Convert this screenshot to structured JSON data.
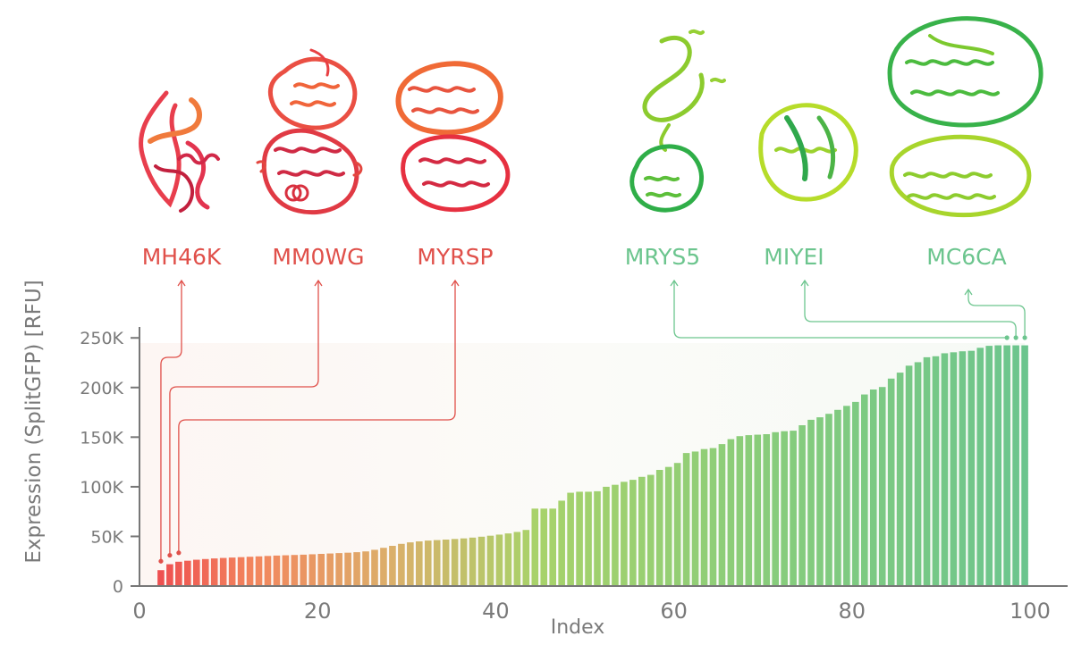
{
  "colors": {
    "red": "#e0504a",
    "green": "#6cc58e",
    "axis": "#777777"
  },
  "chart_data": {
    "type": "bar",
    "xlabel": "Index",
    "ylabel": "Expression (SplitGFP) [RFU]",
    "xlim": [
      0,
      100
    ],
    "ylim": [
      0,
      250000
    ],
    "xticks": [
      0,
      20,
      40,
      60,
      80,
      100
    ],
    "xtick_labels": [
      "0",
      "20",
      "40",
      "60",
      "80",
      "100"
    ],
    "yticks": [
      0,
      50000,
      100000,
      150000,
      200000,
      250000
    ],
    "ytick_labels": [
      "0",
      "50K",
      "100K",
      "150K",
      "200K",
      "250K"
    ],
    "x": [
      1,
      2,
      3,
      4,
      5,
      6,
      7,
      8,
      9,
      10,
      11,
      12,
      13,
      14,
      15,
      16,
      17,
      18,
      19,
      20,
      21,
      22,
      23,
      24,
      25,
      26,
      27,
      28,
      29,
      30,
      31,
      32,
      33,
      34,
      35,
      36,
      37,
      38,
      39,
      40,
      41,
      42,
      43,
      44,
      45,
      46,
      47,
      48,
      49,
      50,
      51,
      52,
      53,
      54,
      55,
      56,
      57,
      58,
      59,
      60,
      61,
      62,
      63,
      64,
      65,
      66,
      67,
      68,
      69,
      70,
      71,
      72,
      73,
      74,
      75,
      76,
      77,
      78,
      79,
      80,
      81,
      82,
      83,
      84,
      85,
      86,
      87,
      88,
      89,
      90,
      91,
      92,
      93,
      94,
      95,
      96,
      97,
      98
    ],
    "values": [
      16000,
      22000,
      24500,
      25500,
      26500,
      27200,
      27800,
      28300,
      28700,
      29100,
      29500,
      29900,
      30300,
      30700,
      31000,
      31300,
      31600,
      32000,
      32400,
      32800,
      33200,
      33600,
      34100,
      34900,
      36500,
      38500,
      40500,
      42500,
      44000,
      45000,
      45800,
      46300,
      46800,
      47400,
      48000,
      48800,
      49700,
      50700,
      51800,
      53000,
      54500,
      56500,
      78000,
      78000,
      78000,
      86000,
      94000,
      95000,
      95000,
      95500,
      100000,
      102000,
      105000,
      107000,
      110000,
      112000,
      117000,
      120000,
      124000,
      134000,
      135500,
      138000,
      139000,
      143000,
      148000,
      151000,
      152000,
      152500,
      153000,
      155000,
      156000,
      156500,
      162000,
      167500,
      170000,
      173500,
      177500,
      181500,
      185500,
      193000,
      198000,
      200500,
      209000,
      215000,
      222000,
      225500,
      230500,
      231500,
      234500,
      235500,
      236500,
      237000,
      240000,
      242000,
      242500,
      242500,
      242500,
      242500
    ],
    "annotations": [
      {
        "label": "MH46K",
        "index": 1,
        "group": "low"
      },
      {
        "label": "MM0WG",
        "index": 2,
        "group": "low"
      },
      {
        "label": "MYRSP",
        "index": 3,
        "group": "low"
      },
      {
        "label": "MRYS5",
        "index": 96,
        "group": "high"
      },
      {
        "label": "MIYEI",
        "index": 97,
        "group": "high"
      },
      {
        "label": "MC6CA",
        "index": 98,
        "group": "high"
      }
    ]
  }
}
